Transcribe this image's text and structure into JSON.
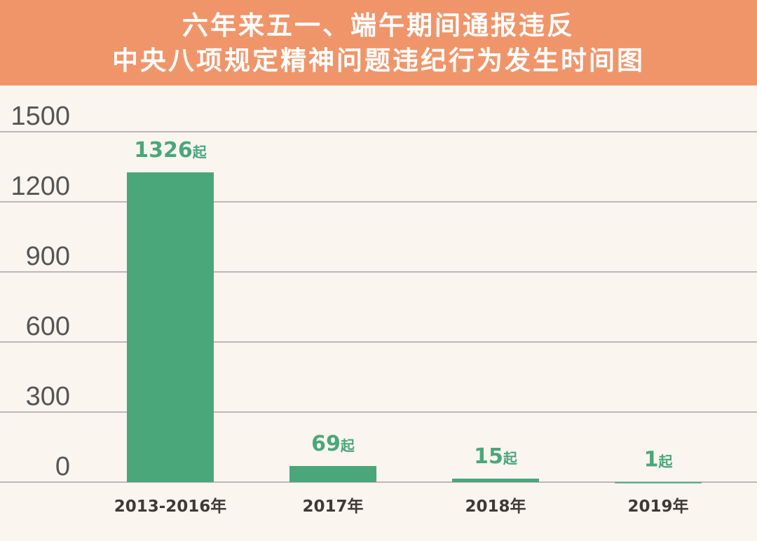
{
  "chart_data": {
    "type": "bar",
    "title_lines": [
      "六年来五一、端午期间通报违反",
      "中央八项规定精神问题违纪行为发生时间图"
    ],
    "categories": [
      "2013-2016年",
      "2017年",
      "2018年",
      "2019年"
    ],
    "values": [
      1326,
      69,
      15,
      1
    ],
    "data_labels": [
      "1326",
      "69",
      "15",
      "1"
    ],
    "data_label_unit": "起",
    "yticks": [
      0,
      300,
      600,
      900,
      1200,
      1500
    ],
    "ylim": [
      0,
      1500
    ],
    "grid": true,
    "xlabel": "",
    "ylabel": "",
    "colors": {
      "bar": "#4aa77a",
      "header": "#f0956a",
      "background": "#faf5ef",
      "grid": "#9a9590"
    }
  }
}
